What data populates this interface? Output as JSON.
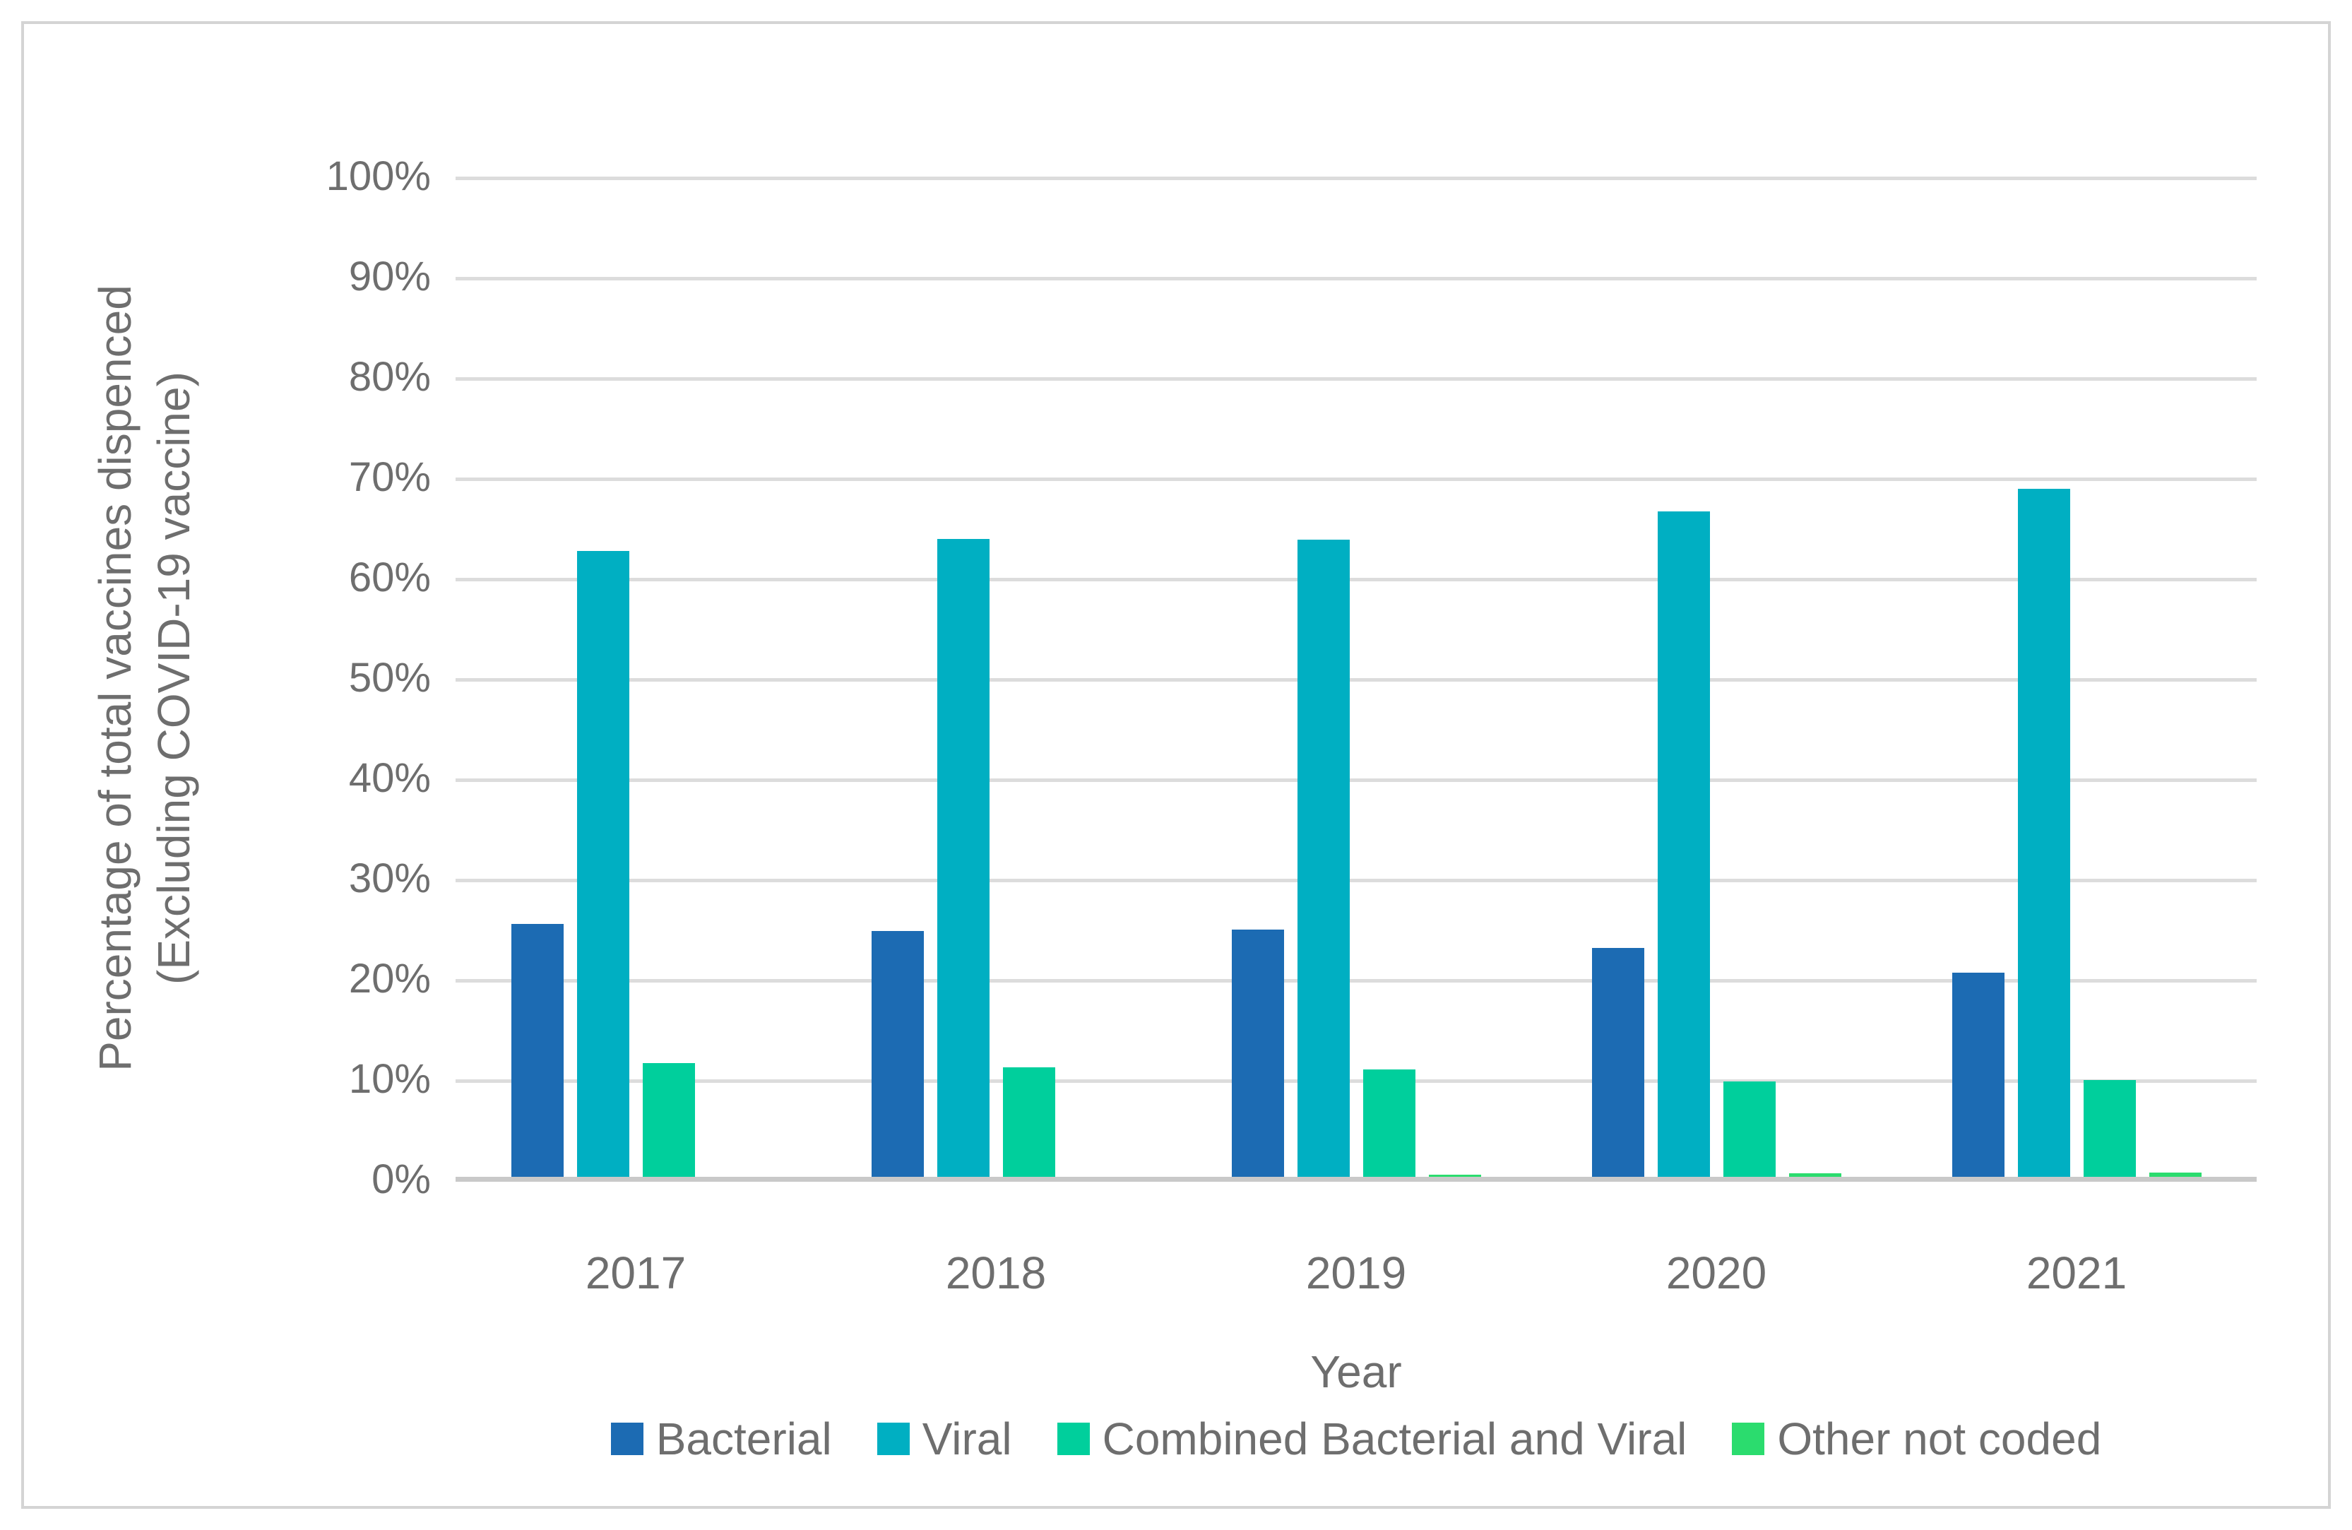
{
  "figure": {
    "background": "#FFFFFF",
    "border_color": "#D4D4D4",
    "text_color": "#6E6E6E",
    "gridline_color": "#DCDCDC",
    "axisline_color": "#C9C9C9"
  },
  "y_axis": {
    "title_line1": "Percentage of total vaccines dispenced",
    "title_line2": "(Excluding COVID-19 vaccine)",
    "tick_labels": [
      "0%",
      "10%",
      "20%",
      "30%",
      "40%",
      "50%",
      "60%",
      "70%",
      "80%",
      "90%",
      "100%"
    ]
  },
  "x_axis": {
    "title": "Year",
    "categories": [
      "2017",
      "2018",
      "2019",
      "2020",
      "2021"
    ]
  },
  "chart_data": {
    "type": "bar",
    "title": "",
    "xlabel": "Year",
    "ylabel": "Percentage of total vaccines dispenced (Excluding COVID-19 vaccine)",
    "ylim": [
      0,
      100
    ],
    "ytick_step": 10,
    "grid": true,
    "legend_position": "bottom",
    "categories": [
      "2017",
      "2018",
      "2019",
      "2020",
      "2021"
    ],
    "series": [
      {
        "name": "Bacterial",
        "color": "#1C6BB3",
        "values": [
          25.5,
          24.8,
          24.9,
          23.1,
          20.6
        ]
      },
      {
        "name": "Viral",
        "color": "#00AFC2",
        "values": [
          62.7,
          63.9,
          63.8,
          66.6,
          68.9
        ]
      },
      {
        "name": "Combined Bacterial and Viral",
        "color": "#00CF9C",
        "values": [
          11.6,
          11.2,
          11.0,
          9.8,
          9.9
        ]
      },
      {
        "name": "Other not coded",
        "color": "#2BDC6E",
        "values": [
          0.3,
          0.3,
          0.5,
          0.6,
          0.7
        ]
      }
    ]
  }
}
